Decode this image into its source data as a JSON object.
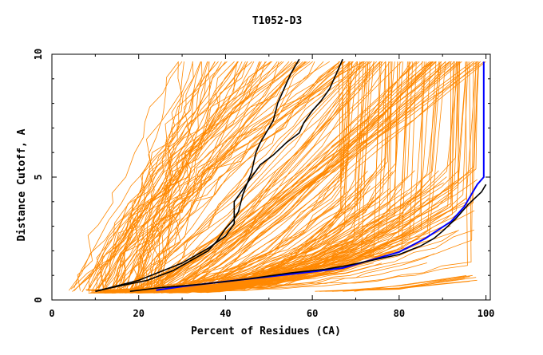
{
  "chart_data": {
    "type": "line",
    "title": "T1052-D3",
    "xlabel": "Percent of Residues (CA)",
    "ylabel": "Distance Cutoff, A",
    "xlim": [
      0,
      101
    ],
    "ylim": [
      0,
      10
    ],
    "x_ticks": [
      "0",
      "20",
      "40",
      "60",
      "80",
      "100"
    ],
    "y_ticks": [
      "0",
      "5",
      "10"
    ],
    "grid": false,
    "colors": {
      "background_models": "#ff8800",
      "highlight_models": "#000000",
      "reference": "#0000ff"
    },
    "series": [
      {
        "name": "best-model-blue",
        "color": "#0000ff",
        "x": [
          24,
          30,
          40,
          50,
          60,
          67,
          72,
          80,
          86,
          92,
          95,
          98,
          99.5,
          99.5,
          99.5
        ],
        "y": [
          0.4,
          0.55,
          0.75,
          0.95,
          1.15,
          1.3,
          1.55,
          1.95,
          2.5,
          3.2,
          3.8,
          4.7,
          5.0,
          7.5,
          9.7
        ]
      },
      {
        "name": "model-black-a",
        "color": "#000000",
        "x": [
          18,
          25,
          35,
          45,
          55,
          63,
          68,
          72,
          80,
          85,
          88,
          90,
          93,
          96,
          99,
          100
        ],
        "y": [
          0.35,
          0.5,
          0.65,
          0.85,
          1.1,
          1.25,
          1.4,
          1.55,
          1.85,
          2.2,
          2.5,
          2.8,
          3.3,
          3.9,
          4.4,
          4.7
        ]
      },
      {
        "name": "model-black-b",
        "color": "#000000",
        "x": [
          10,
          15,
          22,
          28,
          32,
          36,
          38,
          40,
          42,
          43,
          44,
          46,
          47,
          48,
          50,
          51,
          52,
          54,
          55,
          56,
          57
        ],
        "y": [
          0.35,
          0.55,
          0.8,
          1.2,
          1.6,
          2.0,
          2.4,
          2.9,
          3.3,
          3.6,
          4.3,
          5.2,
          6.0,
          6.4,
          7.0,
          7.3,
          8.0,
          8.8,
          9.2,
          9.5,
          9.8
        ]
      },
      {
        "name": "model-black-c",
        "color": "#000000",
        "x": [
          10,
          20,
          30,
          36,
          40,
          42,
          42,
          44,
          46,
          48,
          51,
          54,
          57,
          58,
          60,
          62,
          64,
          65,
          66,
          67
        ],
        "y": [
          0.35,
          0.8,
          1.5,
          2.1,
          2.6,
          3.1,
          4.0,
          4.5,
          5.0,
          5.5,
          5.9,
          6.4,
          6.8,
          7.2,
          7.7,
          8.1,
          8.6,
          9.0,
          9.4,
          9.8
        ]
      }
    ]
  }
}
